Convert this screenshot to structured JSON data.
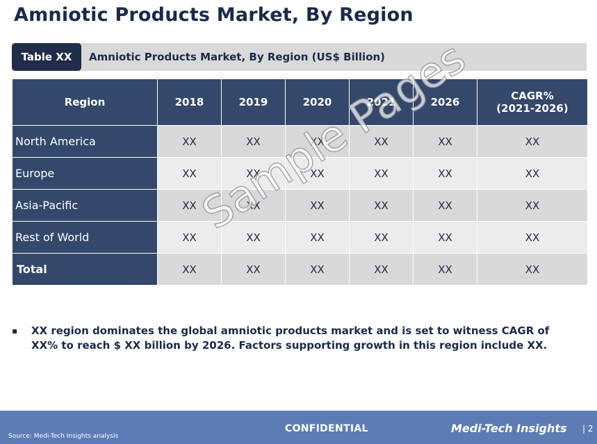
{
  "title": "Amniotic Products Market, By Region",
  "caption": {
    "tag": "Table XX",
    "text": "Amniotic Products Market, By Region (US$ Billion)"
  },
  "table": {
    "headers": [
      "Region",
      "2018",
      "2019",
      "2020",
      "2021",
      "2026",
      "CAGR%",
      "(2021-2026)"
    ],
    "rows": [
      {
        "region": "North America",
        "values": [
          "XX",
          "XX",
          "XX",
          "XX",
          "XX",
          "XX"
        ]
      },
      {
        "region": "Europe",
        "values": [
          "XX",
          "XX",
          "XX",
          "XX",
          "XX",
          "XX"
        ]
      },
      {
        "region": "Asia-Pacific",
        "values": [
          "XX",
          "XX",
          "XX",
          "XX",
          "XX",
          "XX"
        ]
      },
      {
        "region": "Rest of World",
        "values": [
          "XX",
          "XX",
          "XX",
          "XX",
          "XX",
          "XX"
        ]
      },
      {
        "region": "Total",
        "values": [
          "XX",
          "XX",
          "XX",
          "XX",
          "XX",
          "XX"
        ]
      }
    ]
  },
  "watermark": "Sample Pages",
  "bullet": {
    "mark": "▪",
    "text": "XX region dominates the global amniotic products market and is set to witness CAGR of XX% to reach $ XX billion by 2026. Factors supporting growth in this region include XX."
  },
  "footer": {
    "source": "Source: Medi-Tech Insights analysis",
    "confidential": "CONFIDENTIAL",
    "brand": "Medi-Tech Insights",
    "page": "| 2"
  },
  "colors": {
    "header_bg": "#33486b",
    "footer_bg": "#5d7cb6",
    "tag_bg": "#1f2d4a"
  }
}
